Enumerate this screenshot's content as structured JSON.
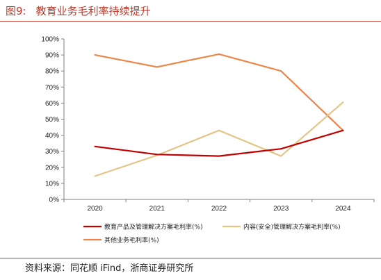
{
  "figure": {
    "number": "图9:",
    "title": "教育业务毛利率持续提升",
    "source": "资料来源：同花顺 iFind，浙商证券研究所"
  },
  "chart_data": {
    "type": "line",
    "title": "教育业务毛利率持续提升",
    "xlabel": "",
    "ylabel": "",
    "categories": [
      "2020",
      "2021",
      "2022",
      "2023",
      "2024"
    ],
    "y_ticks": [
      "0%",
      "10%",
      "20%",
      "30%",
      "40%",
      "50%",
      "60%",
      "70%",
      "80%",
      "90%",
      "100%"
    ],
    "ylim": [
      0,
      100
    ],
    "grid": false,
    "legend_position": "bottom",
    "series": [
      {
        "name": "教育产品及管理解决方案毛利率(%)",
        "color": "#c00000",
        "values": [
          33,
          28,
          27,
          31.5,
          43
        ]
      },
      {
        "name": "内容(安全)管理解决方案毛利率(%)",
        "color": "#e3c587",
        "values": [
          14.5,
          27.5,
          43,
          27,
          60.5
        ]
      },
      {
        "name": "其他业务毛利率(%)",
        "color": "#ed8548",
        "values": [
          90,
          82.5,
          90.5,
          80,
          43
        ]
      }
    ]
  }
}
